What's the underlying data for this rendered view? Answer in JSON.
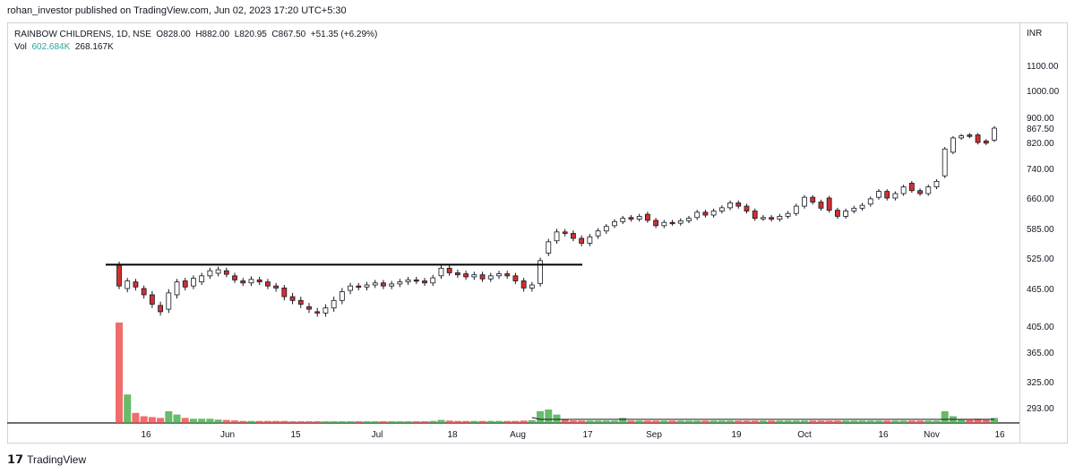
{
  "header": {
    "published": "rohan_investor published on TradingView.com, Jun 02, 2023 17:20 UTC+5:30"
  },
  "legend": {
    "symbol": "RAINBOW CHILDRENS, 1D, NSE",
    "open": "O828.00",
    "high": "H882.00",
    "low": "L820.95",
    "close": "C867.50",
    "change": "+51.35 (+6.29%)",
    "vol_label": "Vol",
    "vol_value": "602.684K",
    "vol_ma": "268.167K"
  },
  "footer": {
    "brand": "TradingView"
  },
  "colors": {
    "up": "#26a69a",
    "down": "#d32f2f",
    "vol_up": "#4caf50",
    "vol_down": "#ef5350",
    "axis": "#131722"
  },
  "chart_data": {
    "type": "candlestick",
    "currency": "INR",
    "y_ticks": [
      "1100.00",
      "1000.00",
      "900.00",
      "867.50",
      "820.00",
      "740.00",
      "660.00",
      "585.00",
      "525.00",
      "465.00",
      "405.00",
      "365.00",
      "325.00",
      "293.00"
    ],
    "x_ticks": [
      "16",
      "Jun",
      "15",
      "Jul",
      "18",
      "Aug",
      "17",
      "Sep",
      "19",
      "Oct",
      "16",
      "Nov",
      "16"
    ],
    "resistance_level": 512,
    "ohlc_close_series": [
      {
        "o": 512,
        "c": 470
      },
      {
        "o": 465,
        "c": 480
      },
      {
        "o": 478,
        "c": 468
      },
      {
        "o": 465,
        "c": 455
      },
      {
        "o": 455,
        "c": 440
      },
      {
        "o": 438,
        "c": 428
      },
      {
        "o": 432,
        "c": 458
      },
      {
        "o": 455,
        "c": 478
      },
      {
        "o": 480,
        "c": 468
      },
      {
        "o": 470,
        "c": 485
      },
      {
        "o": 478,
        "c": 490
      },
      {
        "o": 490,
        "c": 500
      },
      {
        "o": 495,
        "c": 502
      },
      {
        "o": 500,
        "c": 493
      },
      {
        "o": 490,
        "c": 482
      },
      {
        "o": 480,
        "c": 476
      },
      {
        "o": 476,
        "c": 483
      },
      {
        "o": 482,
        "c": 478
      },
      {
        "o": 478,
        "c": 470
      },
      {
        "o": 470,
        "c": 466
      },
      {
        "o": 466,
        "c": 452
      },
      {
        "o": 452,
        "c": 446
      },
      {
        "o": 446,
        "c": 440
      },
      {
        "o": 436,
        "c": 432
      },
      {
        "o": 428,
        "c": 426
      },
      {
        "o": 426,
        "c": 434
      },
      {
        "o": 434,
        "c": 446
      },
      {
        "o": 446,
        "c": 460
      },
      {
        "o": 462,
        "c": 470
      },
      {
        "o": 470,
        "c": 468
      },
      {
        "o": 468,
        "c": 472
      },
      {
        "o": 472,
        "c": 476
      },
      {
        "o": 476,
        "c": 470
      },
      {
        "o": 470,
        "c": 474
      },
      {
        "o": 474,
        "c": 478
      },
      {
        "o": 478,
        "c": 482
      },
      {
        "o": 482,
        "c": 480
      },
      {
        "o": 480,
        "c": 476
      },
      {
        "o": 476,
        "c": 486
      },
      {
        "o": 490,
        "c": 505
      },
      {
        "o": 505,
        "c": 496
      },
      {
        "o": 496,
        "c": 492
      },
      {
        "o": 494,
        "c": 488
      },
      {
        "o": 488,
        "c": 492
      },
      {
        "o": 492,
        "c": 484
      },
      {
        "o": 484,
        "c": 490
      },
      {
        "o": 490,
        "c": 494
      },
      {
        "o": 494,
        "c": 490
      },
      {
        "o": 490,
        "c": 480
      },
      {
        "o": 480,
        "c": 466
      },
      {
        "o": 466,
        "c": 472
      },
      {
        "o": 475,
        "c": 520
      },
      {
        "o": 535,
        "c": 558
      },
      {
        "o": 560,
        "c": 578
      },
      {
        "o": 578,
        "c": 575
      },
      {
        "o": 575,
        "c": 565
      },
      {
        "o": 565,
        "c": 555
      },
      {
        "o": 555,
        "c": 568
      },
      {
        "o": 570,
        "c": 580
      },
      {
        "o": 580,
        "c": 590
      },
      {
        "o": 592,
        "c": 602
      },
      {
        "o": 602,
        "c": 610
      },
      {
        "o": 612,
        "c": 608
      },
      {
        "o": 608,
        "c": 615
      },
      {
        "o": 620,
        "c": 605
      },
      {
        "o": 605,
        "c": 592
      },
      {
        "o": 592,
        "c": 600
      },
      {
        "o": 600,
        "c": 598
      },
      {
        "o": 598,
        "c": 604
      },
      {
        "o": 604,
        "c": 610
      },
      {
        "o": 612,
        "c": 625
      },
      {
        "o": 625,
        "c": 618
      },
      {
        "o": 618,
        "c": 628
      },
      {
        "o": 628,
        "c": 636
      },
      {
        "o": 636,
        "c": 648
      },
      {
        "o": 648,
        "c": 640
      },
      {
        "o": 640,
        "c": 628
      },
      {
        "o": 628,
        "c": 610
      },
      {
        "o": 610,
        "c": 612
      },
      {
        "o": 612,
        "c": 608
      },
      {
        "o": 608,
        "c": 615
      },
      {
        "o": 615,
        "c": 622
      },
      {
        "o": 622,
        "c": 640
      },
      {
        "o": 640,
        "c": 662
      },
      {
        "o": 662,
        "c": 650
      },
      {
        "o": 650,
        "c": 635
      },
      {
        "o": 660,
        "c": 630
      },
      {
        "o": 630,
        "c": 615
      },
      {
        "o": 615,
        "c": 628
      },
      {
        "o": 628,
        "c": 635
      },
      {
        "o": 635,
        "c": 642
      },
      {
        "o": 645,
        "c": 658
      },
      {
        "o": 662,
        "c": 678
      },
      {
        "o": 678,
        "c": 660
      },
      {
        "o": 660,
        "c": 672
      },
      {
        "o": 672,
        "c": 690
      },
      {
        "o": 700,
        "c": 680
      },
      {
        "o": 680,
        "c": 672
      },
      {
        "o": 672,
        "c": 690
      },
      {
        "o": 690,
        "c": 705
      },
      {
        "o": 720,
        "c": 800
      },
      {
        "o": 790,
        "c": 835
      },
      {
        "o": 835,
        "c": 842
      },
      {
        "o": 845,
        "c": 840
      },
      {
        "o": 845,
        "c": 820
      },
      {
        "o": 825,
        "c": 818
      },
      {
        "o": 828,
        "c": 867.5
      }
    ],
    "volume_series": [
      {
        "v": 600,
        "up": false
      },
      {
        "v": 170,
        "up": true
      },
      {
        "v": 60,
        "up": false
      },
      {
        "v": 40,
        "up": false
      },
      {
        "v": 35,
        "up": false
      },
      {
        "v": 30,
        "up": false
      },
      {
        "v": 70,
        "up": true
      },
      {
        "v": 50,
        "up": true
      },
      {
        "v": 30,
        "up": false
      },
      {
        "v": 25,
        "up": true
      },
      {
        "v": 25,
        "up": true
      },
      {
        "v": 25,
        "up": true
      },
      {
        "v": 20,
        "up": true
      },
      {
        "v": 18,
        "up": false
      },
      {
        "v": 15,
        "up": false
      },
      {
        "v": 12,
        "up": false
      },
      {
        "v": 12,
        "up": true
      },
      {
        "v": 12,
        "up": false
      },
      {
        "v": 12,
        "up": false
      },
      {
        "v": 12,
        "up": false
      },
      {
        "v": 12,
        "up": false
      },
      {
        "v": 10,
        "up": false
      },
      {
        "v": 10,
        "up": false
      },
      {
        "v": 10,
        "up": false
      },
      {
        "v": 10,
        "up": false
      },
      {
        "v": 10,
        "up": true
      },
      {
        "v": 10,
        "up": true
      },
      {
        "v": 10,
        "up": true
      },
      {
        "v": 10,
        "up": true
      },
      {
        "v": 10,
        "up": false
      },
      {
        "v": 10,
        "up": true
      },
      {
        "v": 10,
        "up": true
      },
      {
        "v": 10,
        "up": false
      },
      {
        "v": 10,
        "up": true
      },
      {
        "v": 10,
        "up": true
      },
      {
        "v": 10,
        "up": true
      },
      {
        "v": 10,
        "up": false
      },
      {
        "v": 10,
        "up": false
      },
      {
        "v": 12,
        "up": true
      },
      {
        "v": 18,
        "up": true
      },
      {
        "v": 14,
        "up": false
      },
      {
        "v": 12,
        "up": false
      },
      {
        "v": 12,
        "up": false
      },
      {
        "v": 12,
        "up": true
      },
      {
        "v": 12,
        "up": false
      },
      {
        "v": 12,
        "up": true
      },
      {
        "v": 12,
        "up": true
      },
      {
        "v": 12,
        "up": false
      },
      {
        "v": 12,
        "up": false
      },
      {
        "v": 14,
        "up": false
      },
      {
        "v": 16,
        "up": true
      },
      {
        "v": 70,
        "up": true
      },
      {
        "v": 80,
        "up": true
      },
      {
        "v": 50,
        "up": true
      },
      {
        "v": 20,
        "up": false
      },
      {
        "v": 15,
        "up": false
      },
      {
        "v": 14,
        "up": false
      },
      {
        "v": 14,
        "up": true
      },
      {
        "v": 14,
        "up": true
      },
      {
        "v": 14,
        "up": true
      },
      {
        "v": 14,
        "up": true
      },
      {
        "v": 30,
        "up": true
      },
      {
        "v": 14,
        "up": false
      },
      {
        "v": 14,
        "up": true
      },
      {
        "v": 14,
        "up": false
      },
      {
        "v": 14,
        "up": false
      },
      {
        "v": 14,
        "up": true
      },
      {
        "v": 14,
        "up": false
      },
      {
        "v": 14,
        "up": true
      },
      {
        "v": 14,
        "up": true
      },
      {
        "v": 14,
        "up": true
      },
      {
        "v": 14,
        "up": false
      },
      {
        "v": 14,
        "up": true
      },
      {
        "v": 14,
        "up": true
      },
      {
        "v": 14,
        "up": true
      },
      {
        "v": 14,
        "up": false
      },
      {
        "v": 14,
        "up": false
      },
      {
        "v": 14,
        "up": false
      },
      {
        "v": 14,
        "up": true
      },
      {
        "v": 14,
        "up": false
      },
      {
        "v": 14,
        "up": true
      },
      {
        "v": 14,
        "up": true
      },
      {
        "v": 14,
        "up": true
      },
      {
        "v": 14,
        "up": true
      },
      {
        "v": 14,
        "up": false
      },
      {
        "v": 14,
        "up": false
      },
      {
        "v": 14,
        "up": false
      },
      {
        "v": 14,
        "up": false
      },
      {
        "v": 14,
        "up": true
      },
      {
        "v": 14,
        "up": true
      },
      {
        "v": 14,
        "up": true
      },
      {
        "v": 14,
        "up": true
      },
      {
        "v": 14,
        "up": true
      },
      {
        "v": 14,
        "up": false
      },
      {
        "v": 14,
        "up": true
      },
      {
        "v": 14,
        "up": true
      },
      {
        "v": 14,
        "up": false
      },
      {
        "v": 14,
        "up": false
      },
      {
        "v": 14,
        "up": true
      },
      {
        "v": 14,
        "up": true
      },
      {
        "v": 70,
        "up": true
      },
      {
        "v": 40,
        "up": true
      },
      {
        "v": 22,
        "up": true
      },
      {
        "v": 18,
        "up": false
      },
      {
        "v": 25,
        "up": false
      },
      {
        "v": 18,
        "up": false
      },
      {
        "v": 30,
        "up": true
      }
    ]
  }
}
